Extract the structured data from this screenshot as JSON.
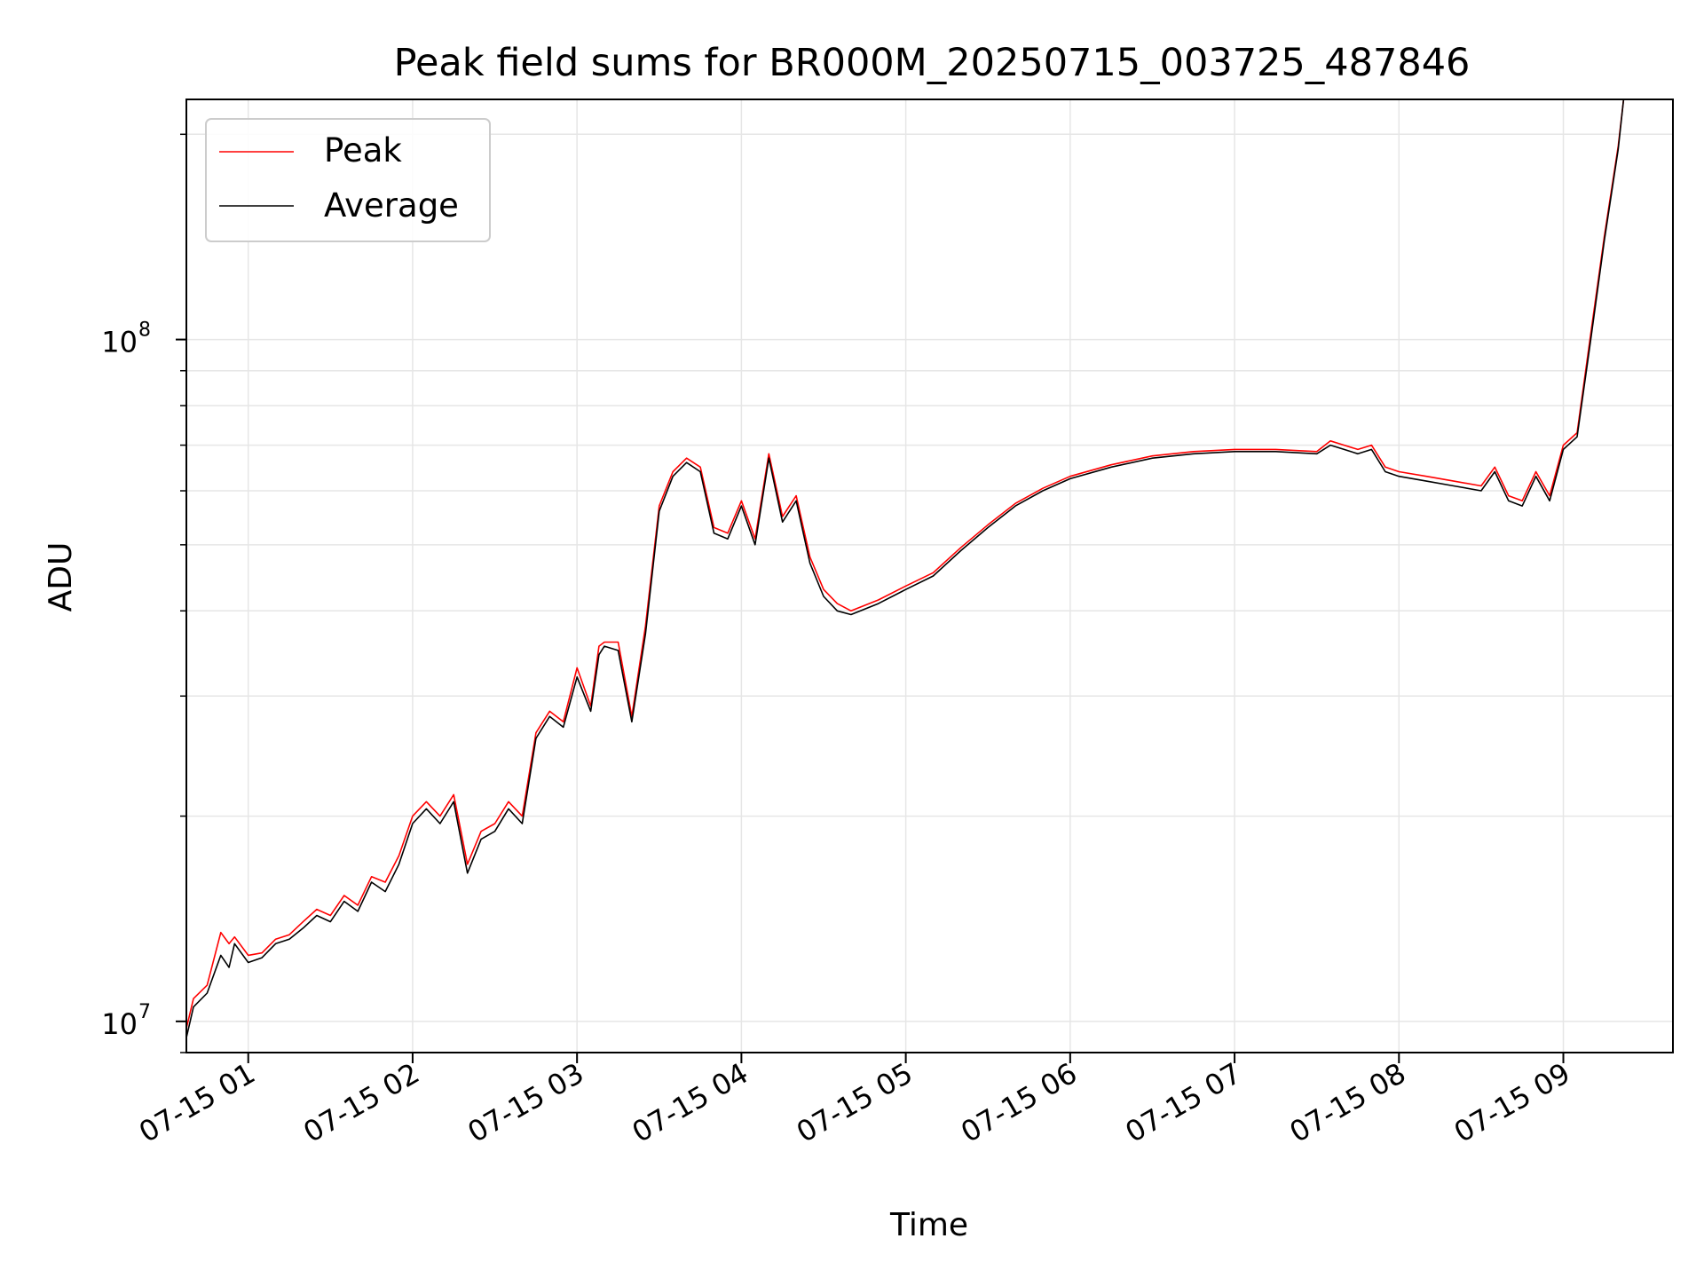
{
  "chart_data": {
    "type": "line",
    "title": "Peak field sums for BR000M_20250715_003725_487846",
    "xlabel": "Time",
    "ylabel": "ADU",
    "y_scale": "log",
    "ylim": [
      9000000,
      225000000
    ],
    "xlim": [
      "2025-07-15 00:37:25",
      "2025-07-15 09:40:00"
    ],
    "x_ticks": [
      "07-15 01",
      "07-15 02",
      "07-15 03",
      "07-15 04",
      "07-15 05",
      "07-15 06",
      "07-15 07",
      "07-15 08",
      "07-15 09"
    ],
    "x_tick_values": [
      "2025-07-15 01:00",
      "2025-07-15 02:00",
      "2025-07-15 03:00",
      "2025-07-15 04:00",
      "2025-07-15 05:00",
      "2025-07-15 06:00",
      "2025-07-15 07:00",
      "2025-07-15 08:00",
      "2025-07-15 09:00"
    ],
    "y_ticks": [
      {
        "base": "10",
        "exp": "7",
        "value": 10000000
      },
      {
        "base": "10",
        "exp": "8",
        "value": 100000000
      }
    ],
    "grid": true,
    "legend_position": "top-left",
    "series": [
      {
        "name": "Peak",
        "color": "#ff0000"
      },
      {
        "name": "Average",
        "color": "#000000"
      }
    ],
    "x": [
      "2025-07-15 00:37:30",
      "2025-07-15 00:40",
      "2025-07-15 00:45",
      "2025-07-15 00:50",
      "2025-07-15 00:53",
      "2025-07-15 00:55",
      "2025-07-15 01:00",
      "2025-07-15 01:05",
      "2025-07-15 01:10",
      "2025-07-15 01:15",
      "2025-07-15 01:20",
      "2025-07-15 01:25",
      "2025-07-15 01:30",
      "2025-07-15 01:35",
      "2025-07-15 01:40",
      "2025-07-15 01:45",
      "2025-07-15 01:50",
      "2025-07-15 01:55",
      "2025-07-15 02:00",
      "2025-07-15 02:05",
      "2025-07-15 02:10",
      "2025-07-15 02:15",
      "2025-07-15 02:20",
      "2025-07-15 02:25",
      "2025-07-15 02:30",
      "2025-07-15 02:35",
      "2025-07-15 02:40",
      "2025-07-15 02:45",
      "2025-07-15 02:50",
      "2025-07-15 02:55",
      "2025-07-15 03:00",
      "2025-07-15 03:05",
      "2025-07-15 03:08",
      "2025-07-15 03:10",
      "2025-07-15 03:15",
      "2025-07-15 03:20",
      "2025-07-15 03:25",
      "2025-07-15 03:30",
      "2025-07-15 03:35",
      "2025-07-15 03:40",
      "2025-07-15 03:45",
      "2025-07-15 03:50",
      "2025-07-15 03:55",
      "2025-07-15 04:00",
      "2025-07-15 04:05",
      "2025-07-15 04:10",
      "2025-07-15 04:15",
      "2025-07-15 04:20",
      "2025-07-15 04:25",
      "2025-07-15 04:30",
      "2025-07-15 04:35",
      "2025-07-15 04:40",
      "2025-07-15 04:50",
      "2025-07-15 05:00",
      "2025-07-15 05:10",
      "2025-07-15 05:20",
      "2025-07-15 05:30",
      "2025-07-15 05:40",
      "2025-07-15 05:50",
      "2025-07-15 06:00",
      "2025-07-15 06:15",
      "2025-07-15 06:30",
      "2025-07-15 06:45",
      "2025-07-15 07:00",
      "2025-07-15 07:15",
      "2025-07-15 07:30",
      "2025-07-15 07:35",
      "2025-07-15 07:40",
      "2025-07-15 07:45",
      "2025-07-15 07:50",
      "2025-07-15 07:55",
      "2025-07-15 08:00",
      "2025-07-15 08:10",
      "2025-07-15 08:20",
      "2025-07-15 08:30",
      "2025-07-15 08:35",
      "2025-07-15 08:40",
      "2025-07-15 08:45",
      "2025-07-15 08:50",
      "2025-07-15 08:55",
      "2025-07-15 09:00",
      "2025-07-15 09:05",
      "2025-07-15 09:10",
      "2025-07-15 09:15",
      "2025-07-15 09:20",
      "2025-07-15 09:22"
    ],
    "average": [
      9500000.0,
      10500000.0,
      11000000.0,
      12500000.0,
      12000000.0,
      13000000.0,
      12200000.0,
      12400000.0,
      13000000.0,
      13200000.0,
      13700000.0,
      14300000.0,
      14000000.0,
      15000000.0,
      14500000.0,
      16000000.0,
      15500000.0,
      17000000.0,
      19500000.0,
      20500000.0,
      19500000.0,
      21000000.0,
      16500000.0,
      18500000.0,
      19000000.0,
      20500000.0,
      19500000.0,
      26000000.0,
      28000000.0,
      27000000.0,
      32000000.0,
      28500000.0,
      34500000.0,
      35500000.0,
      35000000.0,
      27500000.0,
      37000000.0,
      56000000.0,
      63000000.0,
      66000000.0,
      64000000.0,
      52000000.0,
      51000000.0,
      57000000.0,
      50000000.0,
      67000000.0,
      54000000.0,
      58000000.0,
      47000000.0,
      42000000.0,
      40000000.0,
      39500000.0,
      41000000.0,
      43000000.0,
      45000000.0,
      49000000.0,
      53000000.0,
      57000000.0,
      60000000.0,
      62500000.0,
      65000000.0,
      67000000.0,
      68000000.0,
      68500000.0,
      68500000.0,
      68000000.0,
      70000000.0,
      69000000.0,
      68000000.0,
      69000000.0,
      64000000.0,
      63000000.0,
      62000000.0,
      61000000.0,
      60000000.0,
      64000000.0,
      58000000.0,
      57000000.0,
      63000000.0,
      58000000.0,
      69000000.0,
      72000000.0,
      100000000.0,
      140000000.0,
      190000000.0,
      225000000.0
    ],
    "peak": [
      9800000.0,
      10800000.0,
      11300000.0,
      13500000.0,
      13000000.0,
      13300000.0,
      12500000.0,
      12600000.0,
      13200000.0,
      13400000.0,
      14000000.0,
      14600000.0,
      14300000.0,
      15300000.0,
      14800000.0,
      16300000.0,
      16000000.0,
      17500000.0,
      20000000.0,
      21000000.0,
      20000000.0,
      21500000.0,
      17000000.0,
      19000000.0,
      19500000.0,
      21000000.0,
      20000000.0,
      26500000.0,
      28500000.0,
      27500000.0,
      33000000.0,
      29000000.0,
      35500000.0,
      36000000.0,
      36000000.0,
      28000000.0,
      38000000.0,
      57000000.0,
      64000000.0,
      67000000.0,
      65000000.0,
      53000000.0,
      52000000.0,
      58000000.0,
      51000000.0,
      68000000.0,
      55000000.0,
      59000000.0,
      48000000.0,
      43000000.0,
      41000000.0,
      40000000.0,
      41500000.0,
      43500000.0,
      45500000.0,
      49500000.0,
      53500000.0,
      57500000.0,
      60500000.0,
      63000000.0,
      65500000.0,
      67500000.0,
      68500000.0,
      69000000.0,
      69000000.0,
      68500000.0,
      71000000.0,
      70000000.0,
      69000000.0,
      70000000.0,
      65000000.0,
      64000000.0,
      63000000.0,
      62000000.0,
      61000000.0,
      65000000.0,
      59000000.0,
      58000000.0,
      64000000.0,
      59000000.0,
      70000000.0,
      73000000.0,
      102000000.0,
      142000000.0,
      192000000.0,
      225000000.0
    ]
  }
}
